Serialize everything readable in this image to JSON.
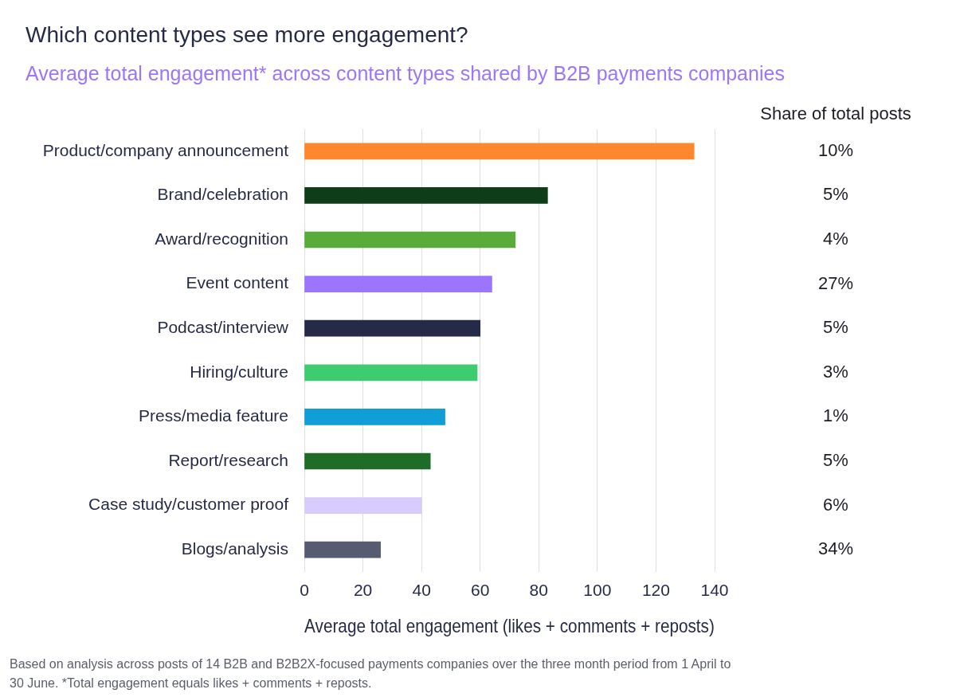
{
  "chart_data": {
    "type": "bar",
    "orientation": "horizontal",
    "title": "Which content types see more engagement?",
    "subtitle": "Average total engagement* across content types shared by B2B payments companies",
    "xlabel": "Average total engagement (likes + comments + reposts)",
    "categories": [
      "Product/company announcement",
      "Brand/celebration",
      "Award/recognition",
      "Event content",
      "Podcast/interview",
      "Hiring/culture",
      "Press/media feature",
      "Report/research",
      "Case study/customer proof",
      "Blogs/analysis"
    ],
    "values": [
      133,
      83,
      72,
      64,
      60,
      59,
      48,
      43,
      40,
      26
    ],
    "colors": [
      "#ff872e",
      "#0f3d17",
      "#5aac3a",
      "#9b75fd",
      "#252a46",
      "#3ecc70",
      "#0f9ed6",
      "#1f6b28",
      "#d8ccfc",
      "#575b70"
    ],
    "xlim": [
      0,
      140
    ],
    "xticks": [
      0,
      20,
      40,
      60,
      80,
      100,
      120,
      140
    ],
    "grid": "x",
    "annotations": [
      "Share of total posts",
      "10%",
      "5%",
      "4%",
      "27%",
      "5%",
      "3%",
      "1%",
      "5%",
      "6%",
      "34%",
      "Based on analysis across posts of 14 B2B and B2B2X-focused payments companies over the three month period from 1 April to 30 June. *Total engagement equals likes + comments + reposts."
    ]
  }
}
